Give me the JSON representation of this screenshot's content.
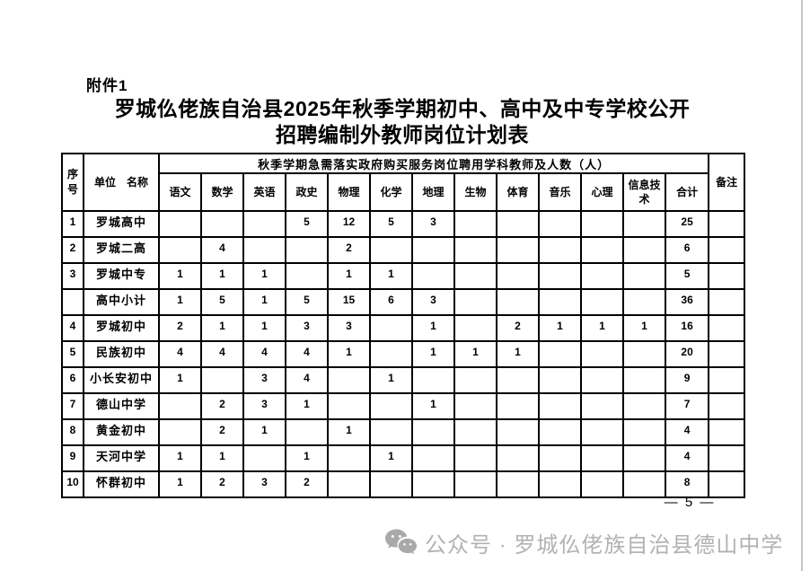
{
  "page": {
    "attachment_label": "附件1",
    "title_line1": "罗城仫佬族自治县2025年秋季学期初中、高中及中专学校公开",
    "title_line2": "招聘编制外教师岗位计划表",
    "page_number": "— 5 —"
  },
  "table": {
    "header": {
      "seq": "序号",
      "unit": "单位　名称",
      "span_title": "秋季学期急需落实政府购买服务岗位聘用学科教师及人数（人）",
      "subjects": [
        "语文",
        "数学",
        "英语",
        "政史",
        "物理",
        "化学",
        "地理",
        "生物",
        "体育",
        "音乐",
        "心理",
        "信息技术",
        "合计"
      ],
      "remark": "备注"
    },
    "rows": [
      {
        "seq": "1",
        "name": "罗城高中",
        "values": [
          "",
          "",
          "",
          "5",
          "12",
          "5",
          "3",
          "",
          "",
          "",
          "",
          "",
          "25"
        ],
        "remark": ""
      },
      {
        "seq": "2",
        "name": "罗城二高",
        "values": [
          "",
          "4",
          "",
          "",
          "2",
          "",
          "",
          "",
          "",
          "",
          "",
          "",
          "6"
        ],
        "remark": ""
      },
      {
        "seq": "3",
        "name": "罗城中专",
        "values": [
          "1",
          "1",
          "1",
          "",
          "1",
          "1",
          "",
          "",
          "",
          "",
          "",
          "",
          "5"
        ],
        "remark": ""
      },
      {
        "seq": "",
        "name": "高中小计",
        "values": [
          "1",
          "5",
          "1",
          "5",
          "15",
          "6",
          "3",
          "",
          "",
          "",
          "",
          "",
          "36"
        ],
        "remark": ""
      },
      {
        "seq": "4",
        "name": "罗城初中",
        "values": [
          "2",
          "1",
          "1",
          "3",
          "3",
          "",
          "1",
          "",
          "2",
          "1",
          "1",
          "1",
          "16"
        ],
        "remark": ""
      },
      {
        "seq": "5",
        "name": "民族初中",
        "values": [
          "4",
          "4",
          "4",
          "4",
          "1",
          "",
          "1",
          "1",
          "1",
          "",
          "",
          "",
          "20"
        ],
        "remark": ""
      },
      {
        "seq": "6",
        "name": "小长安初中",
        "values": [
          "1",
          "",
          "3",
          "4",
          "",
          "1",
          "",
          "",
          "",
          "",
          "",
          "",
          "9"
        ],
        "remark": ""
      },
      {
        "seq": "7",
        "name": "德山中学",
        "values": [
          "",
          "2",
          "3",
          "1",
          "",
          "",
          "1",
          "",
          "",
          "",
          "",
          "",
          "7"
        ],
        "remark": ""
      },
      {
        "seq": "8",
        "name": "黄金初中",
        "values": [
          "",
          "2",
          "1",
          "",
          "1",
          "",
          "",
          "",
          "",
          "",
          "",
          "",
          "4"
        ],
        "remark": ""
      },
      {
        "seq": "9",
        "name": "天河中学",
        "values": [
          "1",
          "1",
          "",
          "1",
          "",
          "1",
          "",
          "",
          "",
          "",
          "",
          "",
          "4"
        ],
        "remark": ""
      },
      {
        "seq": "10",
        "name": "怀群初中",
        "values": [
          "1",
          "2",
          "3",
          "2",
          "",
          "",
          "",
          "",
          "",
          "",
          "",
          "",
          "8"
        ],
        "remark": ""
      }
    ]
  },
  "footer": {
    "icon": "wechat-icon",
    "text": "公众号 · 罗城仫佬族自治县德山中学"
  }
}
